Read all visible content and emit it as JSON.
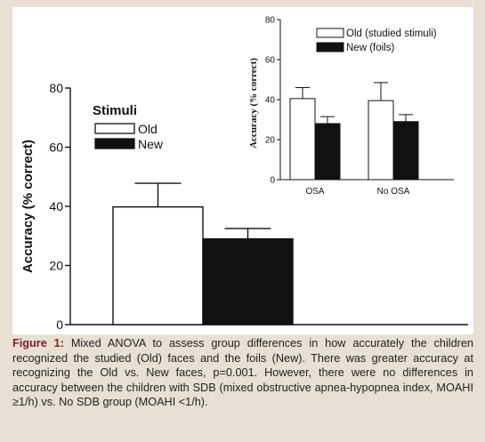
{
  "figure": {
    "caption_label": "Figure 1:",
    "caption_text": " Mixed ANOVA to assess group differences in how accurately the children recognized the studied (Old) faces and the foils (New). There was greater accuracy at recognizing the Old vs. New faces, p=0.001. However, there were no differences in accuracy between the children with SDB (mixed obstructive apnea-hypopnea index, MOAHI ≥1/h) vs. No SDB group (MOAHI <1/h)."
  },
  "colors": {
    "old_fill": "#ffffff",
    "new_fill": "#111111",
    "page_background": "#e7e0d3",
    "caption_label": "#7a1f1f"
  },
  "chart_data": [
    {
      "type": "bar",
      "ylabel": "Accuracy (% correct)",
      "legend_title": "Stimuli",
      "legend_placement": "top-left",
      "ylim": [
        0,
        80
      ],
      "yticks": [
        0,
        20,
        40,
        60,
        80
      ],
      "grid": false,
      "categories": [
        ""
      ],
      "series": [
        {
          "name": "Old",
          "values": [
            39.8
          ],
          "error": [
            8.0
          ]
        },
        {
          "name": "New",
          "values": [
            29.0
          ],
          "error": [
            3.5
          ]
        }
      ]
    },
    {
      "type": "bar",
      "ylabel": "Accuracy (% correct)",
      "legend_placement": "top-right",
      "ylim": [
        0,
        80
      ],
      "yticks": [
        0,
        20,
        40,
        60,
        80
      ],
      "grid": false,
      "categories": [
        "OSA",
        "No OSA"
      ],
      "series": [
        {
          "name": "Old (studied stimuli)",
          "values": [
            40.5,
            39.5
          ],
          "error": [
            5.5,
            9.0
          ]
        },
        {
          "name": "New (foils)",
          "values": [
            28.0,
            29.0
          ],
          "error": [
            3.5,
            3.5
          ]
        }
      ]
    }
  ]
}
